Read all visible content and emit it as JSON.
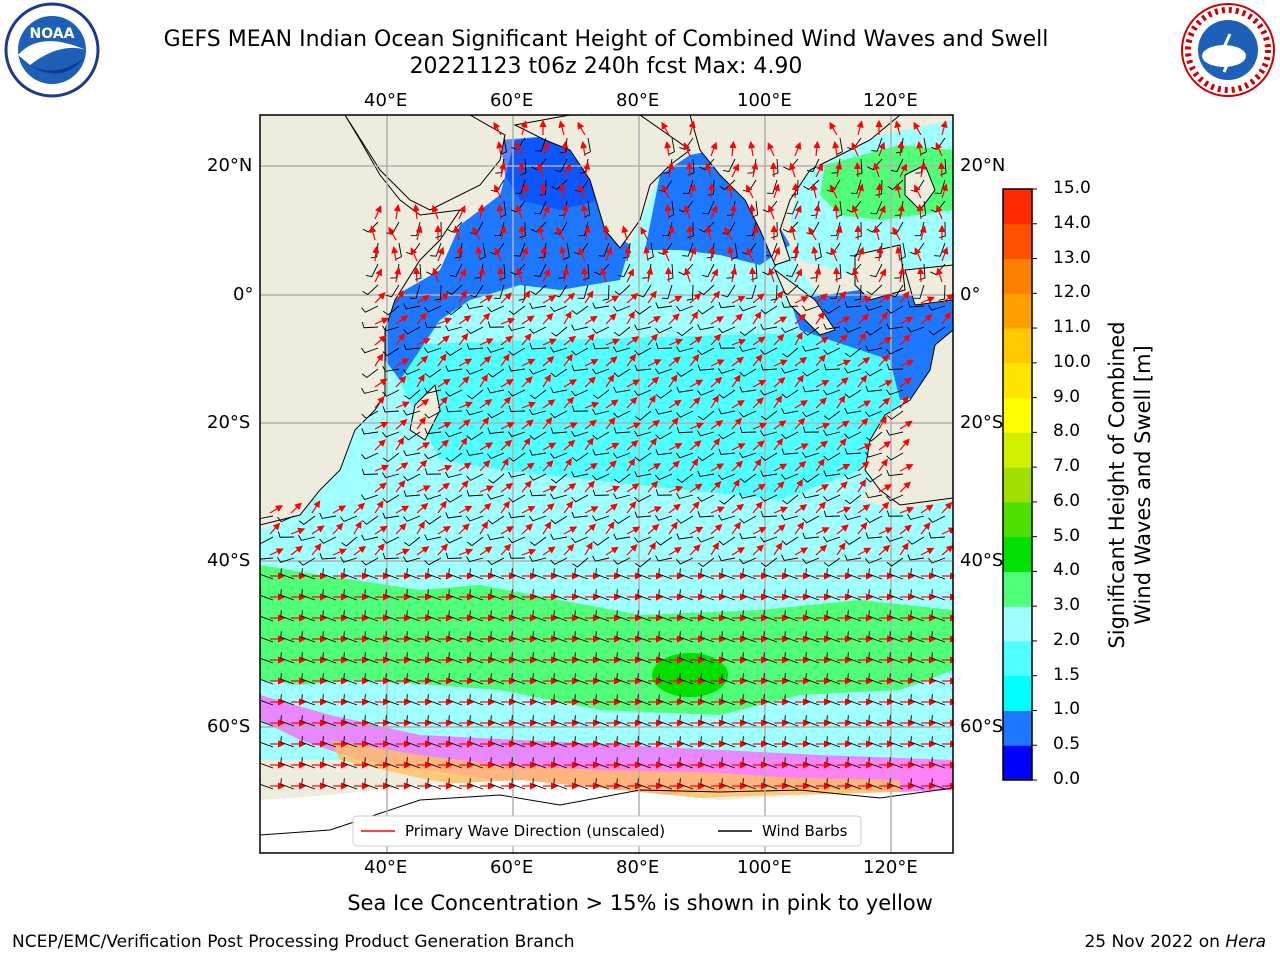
{
  "header": {
    "title_line1": "GEFS MEAN Indian Ocean Significant Height of Combined Wind Waves and Swell",
    "title_line2": "20221123 t06z 240h fcst   Max: 4.90"
  },
  "logos": {
    "left": "NOAA",
    "right_text": "NATIONAL WEATHER SERVICE"
  },
  "map": {
    "lon_labels": [
      "40°E",
      "60°E",
      "80°E",
      "100°E",
      "120°E"
    ],
    "lat_labels": [
      "20°N",
      "0°",
      "20°S",
      "40°S",
      "60°S"
    ],
    "legend": {
      "wave": "Primary Wave Direction (unscaled)",
      "wind": "Wind Barbs"
    }
  },
  "colorbar": {
    "label_line1": "Significant Height of Combined",
    "label_line2": "Wind Waves and Swell [m]",
    "ticks": [
      "0.0",
      "0.5",
      "1.0",
      "1.5",
      "2.0",
      "3.0",
      "4.0",
      "5.0",
      "6.0",
      "7.0",
      "8.0",
      "9.0",
      "10.0",
      "11.0",
      "12.0",
      "13.0",
      "14.0",
      "15.0"
    ],
    "colors": [
      "#0000ff",
      "#1e78ff",
      "#00ffff",
      "#50ffff",
      "#a0ffff",
      "#50ff78",
      "#00e000",
      "#50e000",
      "#a0e000",
      "#d0f000",
      "#ffff00",
      "#ffe600",
      "#ffc800",
      "#ffa000",
      "#ff8000",
      "#ff5000",
      "#ff2800"
    ]
  },
  "note": "Sea Ice Concentration > 15% is shown in pink to yellow",
  "footer": {
    "left": "NCEP/EMC/Verification Post Processing Product Generation Branch",
    "right_prefix": "25 Nov 2022 on ",
    "right_host": "Hera"
  }
}
